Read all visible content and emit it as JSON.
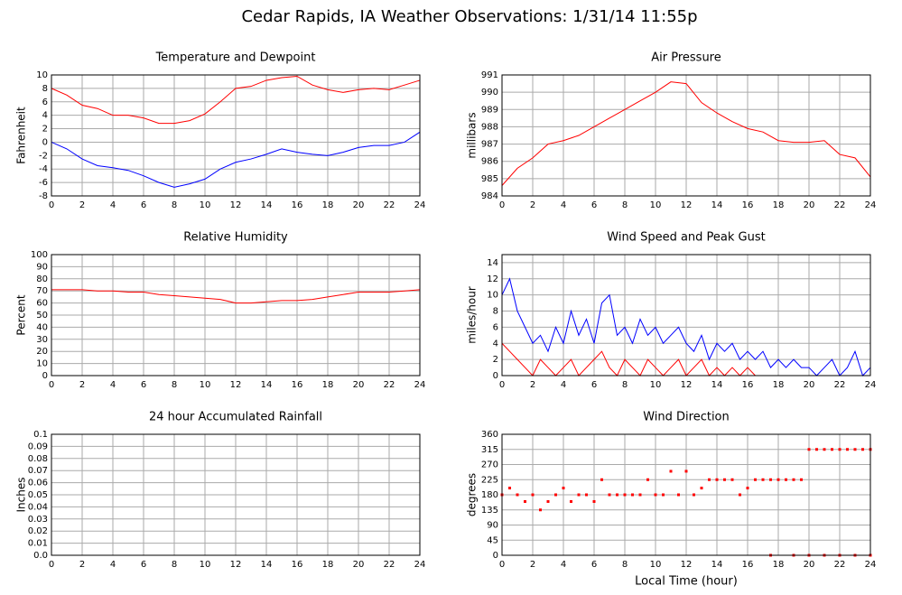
{
  "title": "Cedar Rapids, IA Weather Observations: 1/31/14 11:55p",
  "chart_data": [
    {
      "type": "line",
      "title": "Temperature and Dewpoint",
      "ylabel": "Fahrenheit",
      "x": [
        0,
        1,
        2,
        3,
        4,
        5,
        6,
        7,
        8,
        9,
        10,
        11,
        12,
        13,
        14,
        15,
        16,
        17,
        18,
        19,
        20,
        21,
        22,
        23,
        24
      ],
      "series": [
        {
          "color": "#ff0000",
          "values": [
            8,
            7,
            5.5,
            5,
            4,
            4,
            3.6,
            2.8,
            2.8,
            3.2,
            4.2,
            6,
            8,
            8.3,
            9.2,
            9.6,
            9.8,
            8.5,
            7.8,
            7.4,
            7.8,
            8,
            7.8,
            8.5,
            9.2
          ]
        },
        {
          "color": "#0000ff",
          "values": [
            0,
            -1,
            -2.5,
            -3.5,
            -3.8,
            -4.2,
            -5,
            -6,
            -6.7,
            -6.2,
            -5.5,
            -4,
            -3,
            -2.5,
            -1.8,
            -1,
            -1.5,
            -1.8,
            -2,
            -1.5,
            -0.8,
            -0.5,
            -0.5,
            0,
            1.5
          ]
        }
      ],
      "xlim": [
        0,
        24
      ],
      "xticks": [
        0,
        2,
        4,
        6,
        8,
        10,
        12,
        14,
        16,
        18,
        20,
        22,
        24
      ],
      "ylim": [
        -8,
        10
      ],
      "yticks": [
        -8,
        -6,
        -4,
        -2,
        0,
        2,
        4,
        6,
        8,
        10
      ],
      "grid": true
    },
    {
      "type": "line",
      "title": "Air Pressure",
      "ylabel": "millibars",
      "x": [
        0,
        1,
        2,
        3,
        4,
        5,
        6,
        7,
        8,
        9,
        10,
        11,
        12,
        13,
        14,
        15,
        16,
        17,
        18,
        19,
        20,
        21,
        22,
        23,
        24
      ],
      "series": [
        {
          "color": "#ff0000",
          "values": [
            984.6,
            985.6,
            986.2,
            987,
            987.2,
            987.5,
            988,
            988.5,
            989,
            989.5,
            990,
            990.6,
            990.5,
            989.4,
            988.8,
            988.3,
            987.9,
            987.7,
            987.2,
            987.1,
            987.1,
            987.2,
            986.4,
            986.2,
            985.1
          ]
        }
      ],
      "xlim": [
        0,
        24
      ],
      "xticks": [
        0,
        2,
        4,
        6,
        8,
        10,
        12,
        14,
        16,
        18,
        20,
        22,
        24
      ],
      "ylim": [
        984,
        991
      ],
      "yticks": [
        984,
        985,
        986,
        987,
        988,
        989,
        990,
        991
      ],
      "grid": true
    },
    {
      "type": "line",
      "title": "Relative Humidity",
      "ylabel": "Percent",
      "x": [
        0,
        1,
        2,
        3,
        4,
        5,
        6,
        7,
        8,
        9,
        10,
        11,
        12,
        13,
        14,
        15,
        16,
        17,
        18,
        19,
        20,
        21,
        22,
        23,
        24
      ],
      "series": [
        {
          "color": "#ff0000",
          "values": [
            71,
            71,
            71,
            70,
            70,
            69,
            69,
            67,
            66,
            65,
            64,
            63,
            60,
            60,
            61,
            62,
            62,
            63,
            65,
            67,
            69,
            69,
            69,
            70,
            71
          ]
        }
      ],
      "xlim": [
        0,
        24
      ],
      "xticks": [
        0,
        2,
        4,
        6,
        8,
        10,
        12,
        14,
        16,
        18,
        20,
        22,
        24
      ],
      "ylim": [
        0,
        100
      ],
      "yticks": [
        0,
        10,
        20,
        30,
        40,
        50,
        60,
        70,
        80,
        90,
        100
      ],
      "grid": true
    },
    {
      "type": "line",
      "title": "Wind Speed and Peak Gust",
      "ylabel": "miles/hour",
      "x": [
        0,
        0.5,
        1,
        1.5,
        2,
        2.5,
        3,
        3.5,
        4,
        4.5,
        5,
        5.5,
        6,
        6.5,
        7,
        7.5,
        8,
        8.5,
        9,
        9.5,
        10,
        10.5,
        11,
        11.5,
        12,
        12.5,
        13,
        13.5,
        14,
        14.5,
        15,
        15.5,
        16,
        16.5,
        17,
        17.5,
        18,
        18.5,
        19,
        19.5,
        20,
        20.5,
        21,
        21.5,
        22,
        22.5,
        23,
        23.5,
        24
      ],
      "series": [
        {
          "color": "#0000ff",
          "values": [
            10,
            12,
            8,
            6,
            4,
            5,
            3,
            6,
            4,
            8,
            5,
            7,
            4,
            9,
            10,
            5,
            6,
            4,
            7,
            5,
            6,
            4,
            5,
            6,
            4,
            3,
            5,
            2,
            4,
            3,
            4,
            2,
            3,
            2,
            3,
            1,
            2,
            1,
            2,
            1,
            1,
            0,
            1,
            2,
            0,
            1,
            3,
            0,
            1
          ]
        },
        {
          "color": "#ff0000",
          "values": [
            4,
            3,
            2,
            1,
            0,
            2,
            1,
            0,
            1,
            2,
            0,
            1,
            2,
            3,
            1,
            0,
            2,
            1,
            0,
            2,
            1,
            0,
            1,
            2,
            0,
            1,
            2,
            0,
            1,
            0,
            1,
            0,
            1,
            0,
            null,
            null,
            null,
            null,
            null,
            null,
            null,
            null,
            null,
            null,
            null,
            null,
            null,
            null,
            null
          ]
        }
      ],
      "xlim": [
        0,
        24
      ],
      "xticks": [
        0,
        2,
        4,
        6,
        8,
        10,
        12,
        14,
        16,
        18,
        20,
        22,
        24
      ],
      "ylim": [
        0,
        15
      ],
      "yticks": [
        0,
        2,
        4,
        6,
        8,
        10,
        12,
        14
      ],
      "grid": true
    },
    {
      "type": "line",
      "title": "24 hour Accumulated Rainfall",
      "ylabel": "Inches",
      "x": [
        0,
        2,
        4,
        6,
        8,
        10,
        12,
        14,
        16,
        18,
        20,
        22,
        24
      ],
      "series": [
        {
          "color": "#ff0000",
          "values": [
            0,
            0,
            0,
            0,
            0,
            0,
            0,
            0,
            0,
            0,
            0,
            0,
            0
          ]
        }
      ],
      "xlim": [
        0,
        24
      ],
      "xticks": [
        0,
        2,
        4,
        6,
        8,
        10,
        12,
        14,
        16,
        18,
        20,
        22,
        24
      ],
      "ylim": [
        0,
        0.1
      ],
      "yticks": [
        {
          "value": 0,
          "label": "0.0"
        },
        0.01,
        0.02,
        0.03,
        0.04,
        0.05,
        0.06,
        0.07,
        0.08,
        0.09,
        0.1
      ],
      "grid": true
    },
    {
      "type": "scatter",
      "title": "Wind Direction",
      "ylabel": "degrees",
      "xlabel": "Local Time (hour)",
      "x": [
        0,
        0.5,
        1,
        1.5,
        2,
        2.5,
        3,
        3.5,
        4,
        4.5,
        5,
        5.5,
        6,
        6.5,
        7,
        7.5,
        8,
        8.5,
        9,
        9.5,
        10,
        10.5,
        11,
        11.5,
        12,
        12.5,
        13,
        13.5,
        14,
        14.5,
        15,
        15.5,
        16,
        16.5,
        17,
        17.5,
        18,
        18.5,
        19,
        19.5,
        20,
        20.5,
        21,
        21.5,
        22,
        22.5,
        23,
        23.5,
        24,
        17.5,
        19,
        20,
        21,
        22,
        23,
        24
      ],
      "series": [
        {
          "color": "#ff0000",
          "values": [
            180,
            200,
            180,
            160,
            180,
            135,
            160,
            180,
            200,
            160,
            180,
            180,
            160,
            225,
            180,
            180,
            180,
            180,
            180,
            225,
            180,
            180,
            250,
            180,
            250,
            180,
            200,
            225,
            225,
            225,
            225,
            180,
            200,
            225,
            225,
            225,
            225,
            225,
            225,
            225,
            315,
            315,
            315,
            315,
            315,
            315,
            315,
            315,
            315,
            0,
            0,
            0,
            0,
            0,
            0,
            0
          ]
        }
      ],
      "xlim": [
        0,
        24
      ],
      "xticks": [
        0,
        2,
        4,
        6,
        8,
        10,
        12,
        14,
        16,
        18,
        20,
        22,
        24
      ],
      "ylim": [
        0,
        360
      ],
      "yticks": [
        0,
        45,
        90,
        135,
        180,
        225,
        270,
        315,
        360
      ],
      "grid": true
    }
  ]
}
